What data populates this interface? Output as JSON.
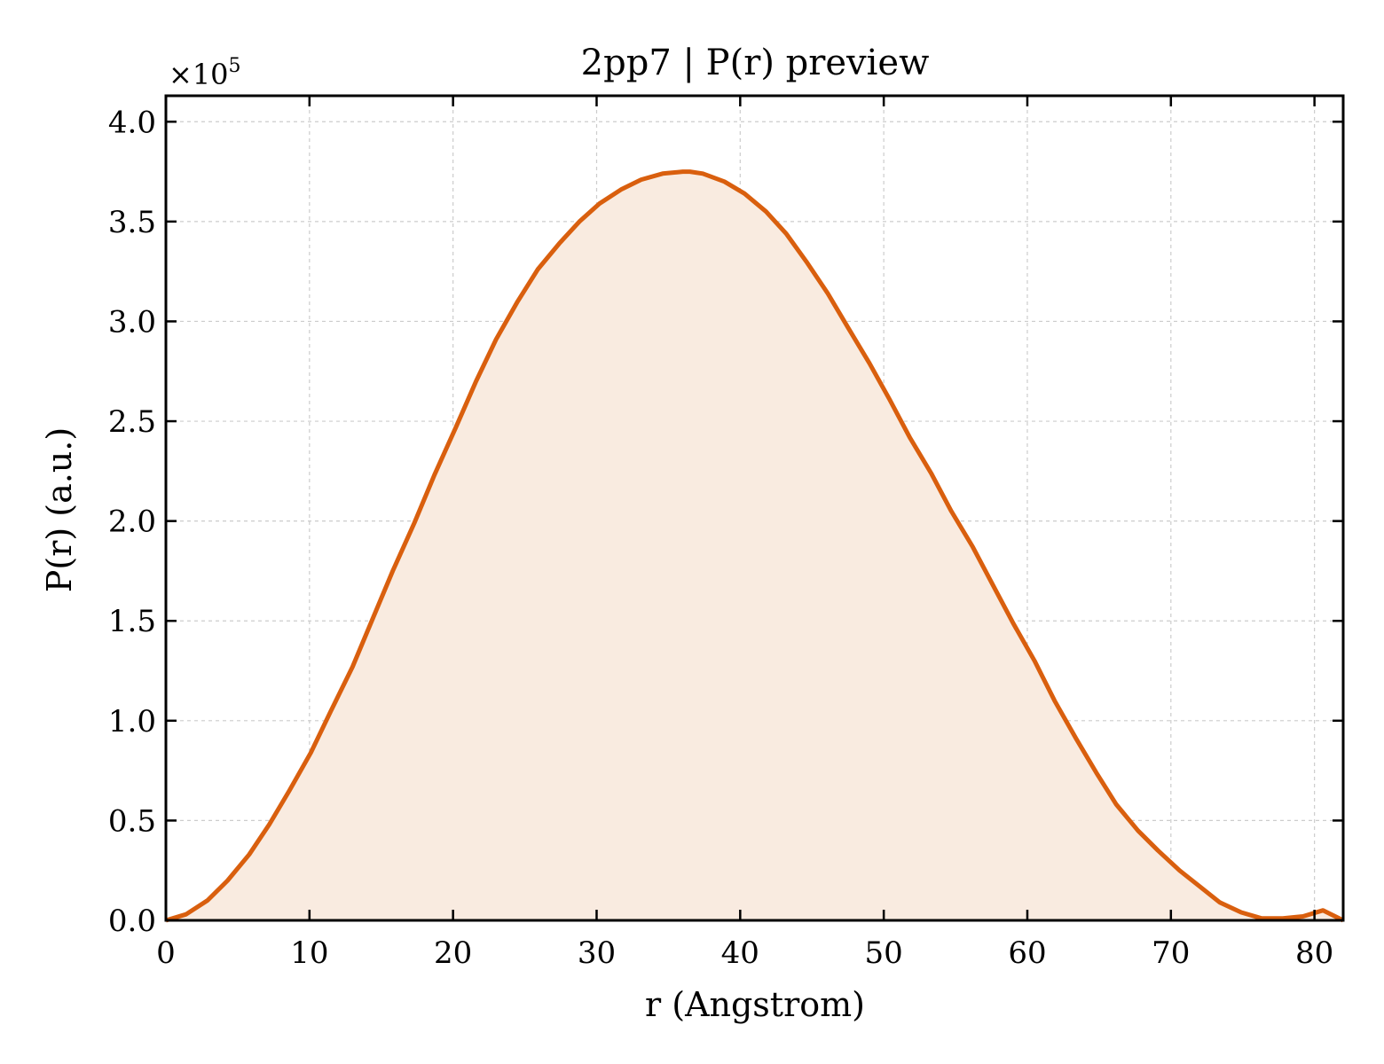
{
  "chart_data": {
    "type": "area",
    "title": "2pp7 | P(r) preview",
    "xlabel": "r (Angstrom)",
    "ylabel": "P(r) (a.u.)",
    "y_multiplier_label": "×10",
    "y_multiplier_exponent": "5",
    "xlim": [
      0,
      82
    ],
    "ylim": [
      0,
      4.13
    ],
    "y_scale": 100000,
    "x_ticks": [
      0,
      10,
      20,
      30,
      40,
      50,
      60,
      70,
      80
    ],
    "x_tick_labels": [
      "0",
      "10",
      "20",
      "30",
      "40",
      "50",
      "60",
      "70",
      "80"
    ],
    "y_ticks": [
      0,
      0.5,
      1,
      1.5,
      2,
      2.5,
      3,
      3.5,
      4
    ],
    "y_tick_labels": [
      "0.0",
      "0.5",
      "1.0",
      "1.5",
      "2.0",
      "2.5",
      "3.0",
      "3.5",
      "4.0"
    ],
    "grid": true,
    "colors": {
      "line": "#d95f0e",
      "fill": "#f9ebe0",
      "grid": "#cccccc",
      "axes": "#000000"
    },
    "series": [
      {
        "x": [
          0,
          1.4,
          2.9,
          4.3,
          5.8,
          7.2,
          8.6,
          10.1,
          11.5,
          13.0,
          14.4,
          15.8,
          17.3,
          18.7,
          20.2,
          21.6,
          23.0,
          24.5,
          25.9,
          27.4,
          28.8,
          30.2,
          31.7,
          33.1,
          34.6,
          36.0,
          36.5,
          37.4,
          38.9,
          40.3,
          41.8,
          43.2,
          44.6,
          46.1,
          47.5,
          49.0,
          50.4,
          51.8,
          53.3,
          54.7,
          56.2,
          57.6,
          59.0,
          60.5,
          61.9,
          63.4,
          64.8,
          66.2,
          67.7,
          69.1,
          70.6,
          72.0,
          73.4,
          74.9,
          76.3,
          77.8,
          79.2,
          80.6,
          82.0
        ],
        "y": [
          0,
          0.03,
          0.1,
          0.2,
          0.33,
          0.48,
          0.65,
          0.84,
          1.05,
          1.27,
          1.51,
          1.75,
          1.99,
          2.23,
          2.47,
          2.7,
          2.91,
          3.1,
          3.26,
          3.39,
          3.5,
          3.59,
          3.66,
          3.71,
          3.74,
          3.75,
          3.75,
          3.74,
          3.7,
          3.64,
          3.55,
          3.44,
          3.3,
          3.14,
          2.97,
          2.79,
          2.61,
          2.42,
          2.24,
          2.05,
          1.87,
          1.68,
          1.49,
          1.3,
          1.1,
          0.91,
          0.74,
          0.58,
          0.45,
          0.35,
          0.25,
          0.17,
          0.09,
          0.04,
          0.01,
          0.01,
          0.02,
          0.05,
          0
        ]
      }
    ]
  }
}
